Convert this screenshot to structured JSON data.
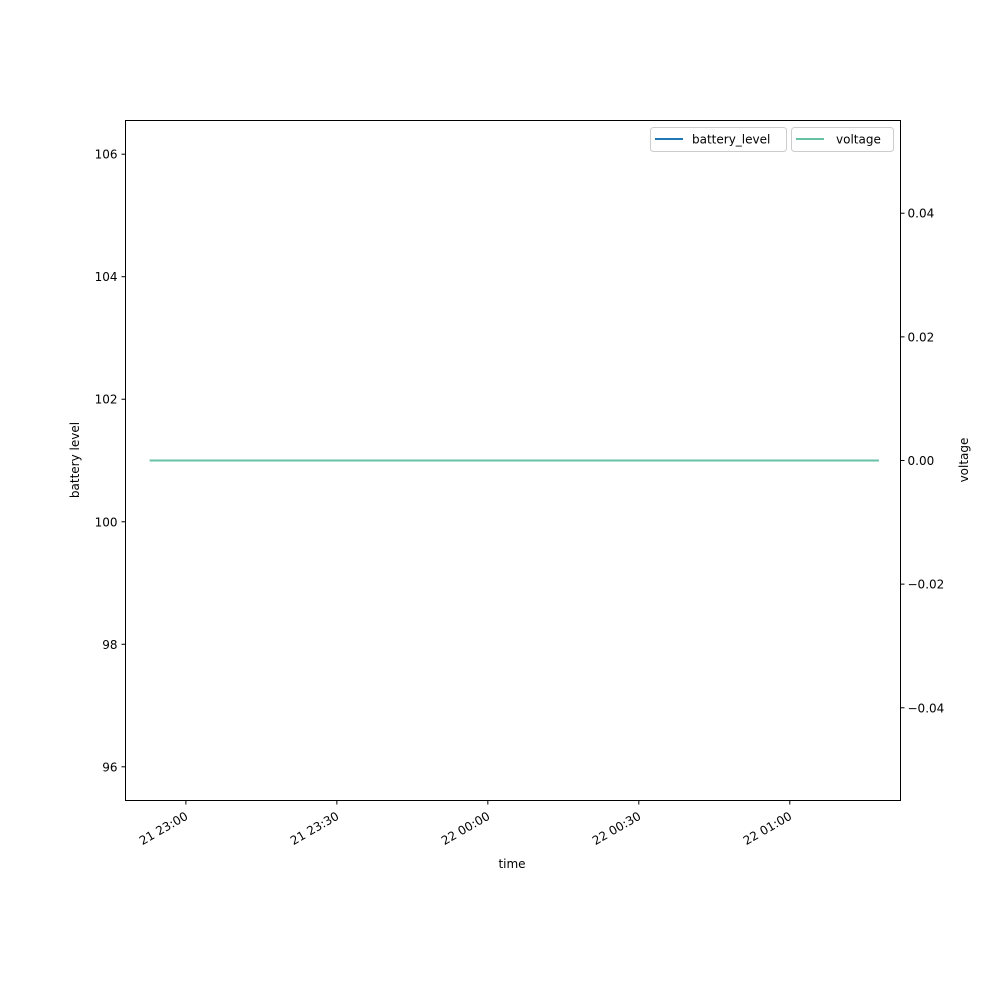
{
  "chart_data": {
    "type": "line",
    "xlabel": "time",
    "ylabel_left": "battery level",
    "ylabel_right": "voltage",
    "x_range": [
      "2000-01-21T22:48:00",
      "2000-01-22T01:22:00"
    ],
    "x_ticks": [
      {
        "t": "2000-01-21T23:00:00",
        "label": "21 23:00"
      },
      {
        "t": "2000-01-21T23:30:00",
        "label": "21 23:30"
      },
      {
        "t": "2000-01-22T00:00:00",
        "label": "22 00:00"
      },
      {
        "t": "2000-01-22T00:30:00",
        "label": "22 00:30"
      },
      {
        "t": "2000-01-22T01:00:00",
        "label": "22 01:00"
      }
    ],
    "ylim_left": [
      95.45,
      106.55
    ],
    "yticks_left": [
      "96",
      "98",
      "100",
      "102",
      "104",
      "106"
    ],
    "ylim_right": [
      -0.055,
      0.055
    ],
    "yticks_right": [
      "−0.04",
      "−0.02",
      "0.00",
      "0.02",
      "0.04"
    ],
    "yticks_right_values": [
      -0.04,
      -0.02,
      0,
      0.02,
      0.04
    ],
    "grid": false,
    "legend_placement": "top-right",
    "series": [
      {
        "name": "battery_level",
        "axis": "left",
        "color": "#1f77b4",
        "x": [
          "2000-01-21T22:52:50",
          "2000-01-22T01:17:40"
        ],
        "y": [
          101,
          101
        ]
      },
      {
        "name": "voltage",
        "axis": "right",
        "color": "#66c2a5",
        "x": [
          "2000-01-21T22:52:50",
          "2000-01-22T01:17:40"
        ],
        "y": [
          0,
          0
        ]
      }
    ]
  }
}
